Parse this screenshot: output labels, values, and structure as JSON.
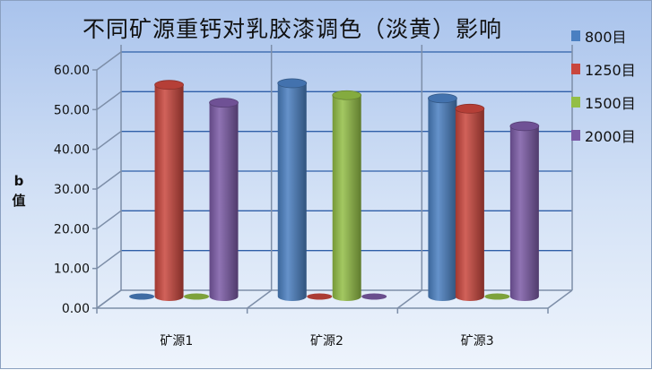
{
  "chart_data": {
    "type": "bar",
    "style": "3d-cylinder",
    "title": "不同矿源重钙对乳胶漆调色（淡黄）影响",
    "ylabel": "b值",
    "xlabel": "",
    "categories": [
      "矿源1",
      "矿源2",
      "矿源3"
    ],
    "ylim": [
      0,
      60
    ],
    "yticks": [
      "0.00",
      "10.00",
      "20.00",
      "30.00",
      "40.00",
      "50.00",
      "60.00"
    ],
    "grid": true,
    "legend_position": "right",
    "series": [
      {
        "name": "800目",
        "color": "#4a7fc1",
        "values": [
          0,
          53.7,
          49.9
        ]
      },
      {
        "name": "1250目",
        "color": "#c9463d",
        "values": [
          53.3,
          0,
          47.3
        ]
      },
      {
        "name": "1500目",
        "color": "#93be46",
        "values": [
          0,
          50.7,
          0
        ]
      },
      {
        "name": "2000目",
        "color": "#7b5aa6",
        "values": [
          48.8,
          0,
          42.9
        ]
      }
    ]
  }
}
